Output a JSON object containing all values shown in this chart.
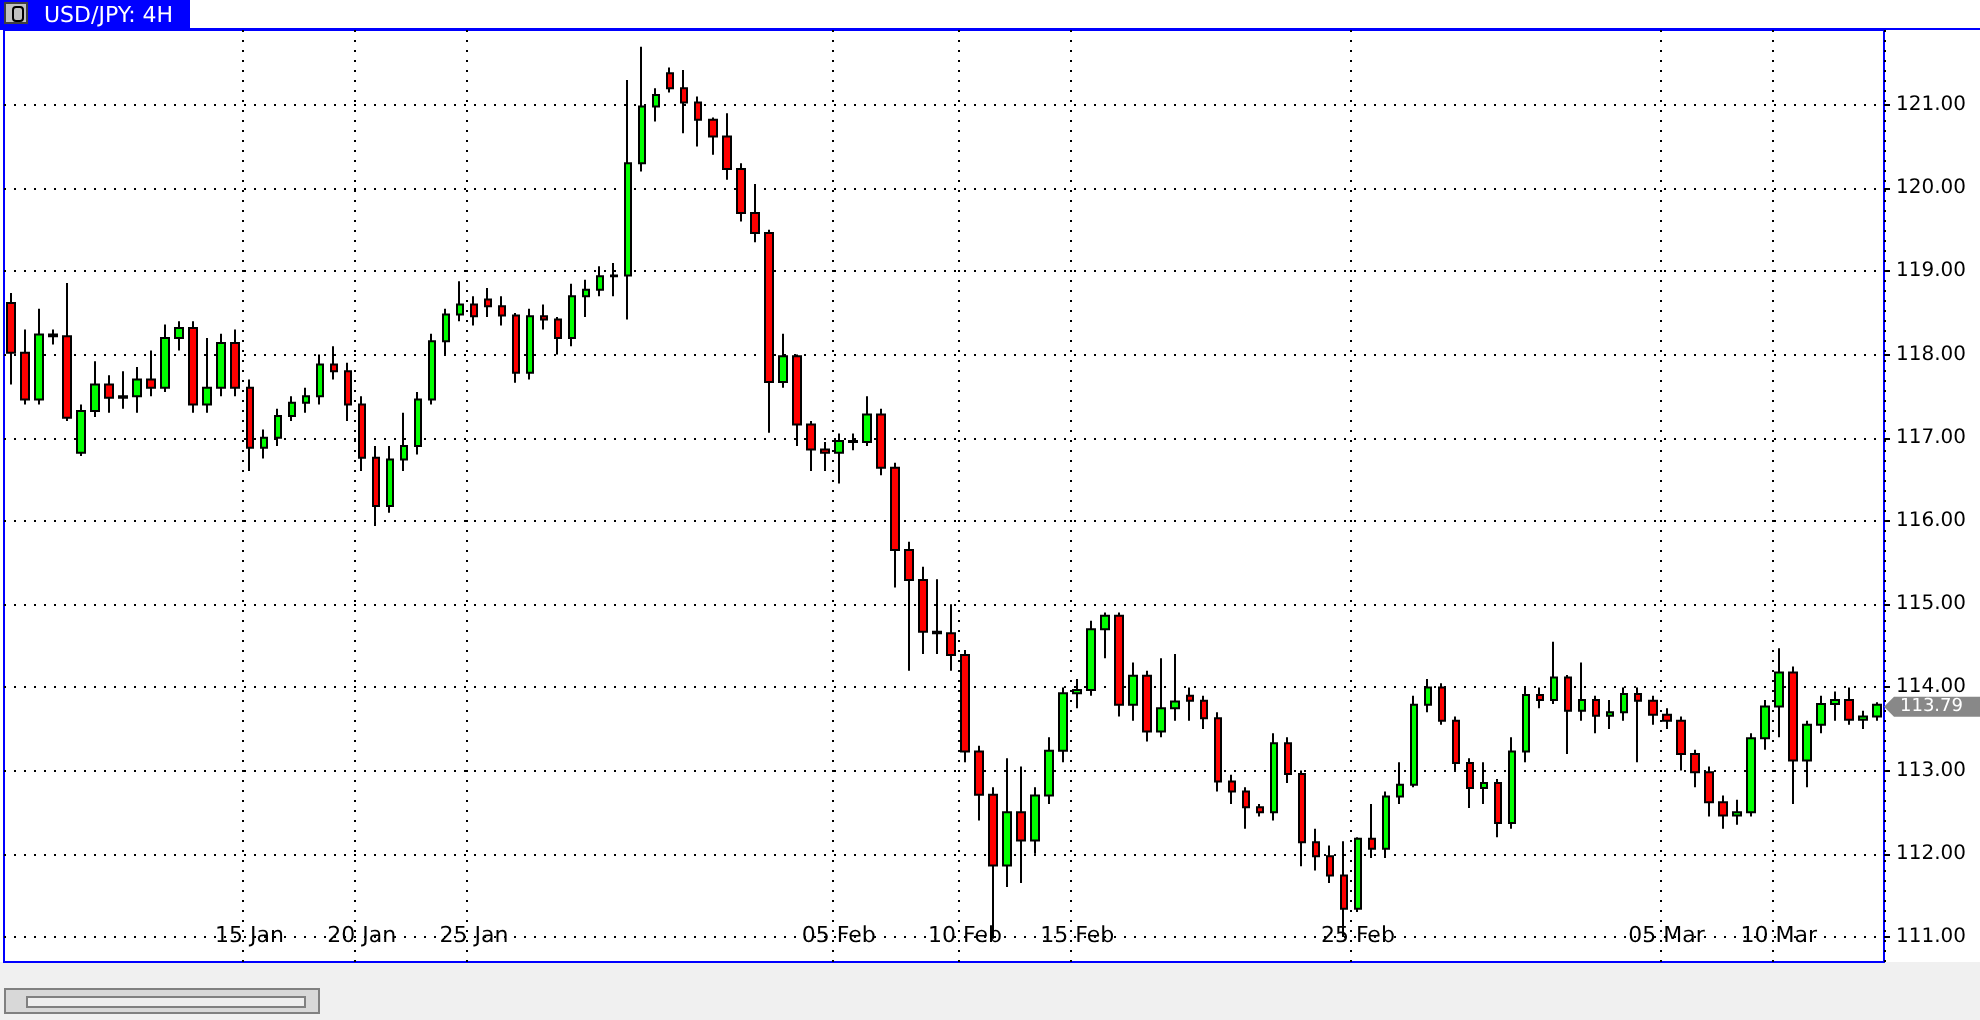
{
  "chart_data": {
    "type": "candlestick",
    "title": "USD/JPY: 4H",
    "categories": [
      null,
      null,
      null,
      null,
      null,
      null,
      null,
      null,
      null,
      null,
      null,
      null,
      null,
      null,
      null,
      null,
      null,
      "15 Jan",
      null,
      null,
      null,
      null,
      null,
      null,
      null,
      "20 Jan",
      null,
      null,
      null,
      null,
      null,
      null,
      null,
      "25 Jan",
      null,
      null,
      null,
      null,
      null,
      null,
      null,
      null,
      null,
      null,
      null,
      null,
      null,
      null,
      null,
      null,
      null,
      null,
      null,
      null,
      null,
      null,
      null,
      null,
      null,
      "05 Feb",
      null,
      null,
      null,
      null,
      null,
      null,
      null,
      null,
      "10 Feb",
      null,
      null,
      null,
      null,
      null,
      null,
      null,
      "15 Feb",
      null,
      null,
      null,
      null,
      null,
      null,
      null,
      null,
      null,
      null,
      null,
      null,
      null,
      null,
      null,
      null,
      null,
      null,
      null,
      "25 Feb",
      null,
      null,
      null,
      null,
      null,
      null,
      null,
      null,
      null,
      null,
      null,
      null,
      null,
      null,
      null,
      null,
      null,
      null,
      null,
      null,
      null,
      "05 Mar",
      null,
      null,
      null,
      null,
      null,
      null,
      null,
      "10 Mar",
      null,
      null,
      null,
      null,
      null,
      null,
      null
    ],
    "ohlc": [
      [
        118.62,
        118.74,
        117.64,
        118.02
      ],
      [
        118.02,
        118.3,
        117.4,
        117.46
      ],
      [
        117.46,
        118.55,
        117.4,
        118.24
      ],
      [
        118.24,
        118.3,
        118.12,
        118.22
      ],
      [
        118.22,
        118.86,
        117.2,
        117.24
      ],
      [
        116.82,
        117.4,
        116.78,
        117.32
      ],
      [
        117.32,
        117.92,
        117.25,
        117.64
      ],
      [
        117.64,
        117.75,
        117.3,
        117.48
      ],
      [
        117.48,
        117.8,
        117.35,
        117.5
      ],
      [
        117.5,
        117.85,
        117.3,
        117.7
      ],
      [
        117.7,
        118.05,
        117.5,
        117.6
      ],
      [
        117.6,
        118.36,
        117.55,
        118.2
      ],
      [
        118.2,
        118.4,
        118.05,
        118.32
      ],
      [
        118.32,
        118.4,
        117.3,
        117.4
      ],
      [
        117.4,
        118.2,
        117.3,
        117.6
      ],
      [
        117.6,
        118.25,
        117.5,
        118.14
      ],
      [
        118.14,
        118.3,
        117.5,
        117.6
      ],
      [
        117.6,
        117.7,
        116.6,
        116.88
      ],
      [
        116.88,
        117.1,
        116.75,
        117.0
      ],
      [
        117.0,
        117.35,
        116.9,
        117.26
      ],
      [
        117.26,
        117.5,
        117.2,
        117.42
      ],
      [
        117.42,
        117.6,
        117.3,
        117.5
      ],
      [
        117.5,
        118.0,
        117.4,
        117.88
      ],
      [
        117.88,
        118.1,
        117.7,
        117.8
      ],
      [
        117.8,
        117.9,
        117.2,
        117.4
      ],
      [
        117.4,
        117.5,
        116.6,
        116.76
      ],
      [
        116.76,
        116.9,
        115.94,
        116.18
      ],
      [
        116.18,
        116.9,
        116.1,
        116.74
      ],
      [
        116.74,
        117.3,
        116.6,
        116.9
      ],
      [
        116.9,
        117.55,
        116.8,
        117.46
      ],
      [
        117.46,
        118.25,
        117.4,
        118.16
      ],
      [
        118.16,
        118.55,
        118.0,
        118.48
      ],
      [
        118.48,
        118.88,
        118.4,
        118.6
      ],
      [
        118.6,
        118.7,
        118.35,
        118.46
      ],
      [
        118.66,
        118.8,
        118.45,
        118.58
      ],
      [
        118.58,
        118.7,
        118.35,
        118.47
      ],
      [
        118.47,
        118.5,
        117.66,
        117.78
      ],
      [
        117.78,
        118.55,
        117.7,
        118.46
      ],
      [
        118.46,
        118.6,
        118.3,
        118.42
      ],
      [
        118.42,
        118.45,
        118.0,
        118.2
      ],
      [
        118.2,
        118.85,
        118.1,
        118.7
      ],
      [
        118.7,
        118.9,
        118.45,
        118.78
      ],
      [
        118.78,
        119.06,
        118.7,
        118.94
      ],
      [
        118.94,
        119.1,
        118.7,
        118.95
      ],
      [
        118.95,
        121.3,
        118.42,
        120.3
      ],
      [
        120.3,
        121.7,
        120.2,
        120.98
      ],
      [
        120.98,
        121.2,
        120.8,
        121.12
      ],
      [
        121.38,
        121.45,
        121.15,
        121.2
      ],
      [
        121.2,
        121.42,
        120.66,
        121.03
      ],
      [
        121.03,
        121.1,
        120.5,
        120.82
      ],
      [
        120.82,
        120.85,
        120.4,
        120.62
      ],
      [
        120.62,
        120.9,
        120.1,
        120.23
      ],
      [
        120.23,
        120.3,
        119.6,
        119.7
      ],
      [
        119.7,
        120.05,
        119.35,
        119.46
      ],
      [
        119.46,
        119.5,
        117.06,
        117.67
      ],
      [
        117.67,
        118.25,
        117.6,
        117.98
      ],
      [
        117.98,
        118.0,
        116.9,
        117.16
      ],
      [
        117.16,
        117.2,
        116.6,
        116.86
      ],
      [
        116.86,
        116.95,
        116.6,
        116.82
      ],
      [
        116.82,
        117.05,
        116.45,
        116.96
      ],
      [
        116.96,
        117.05,
        116.85,
        116.95
      ],
      [
        116.95,
        117.5,
        116.9,
        117.28
      ],
      [
        117.28,
        117.35,
        116.55,
        116.64
      ],
      [
        116.64,
        116.7,
        115.2,
        115.65
      ],
      [
        115.65,
        115.75,
        114.2,
        115.29
      ],
      [
        115.29,
        115.45,
        114.4,
        114.67
      ],
      [
        114.67,
        115.3,
        114.4,
        114.65
      ],
      [
        114.65,
        115.0,
        114.2,
        114.39
      ],
      [
        114.39,
        114.45,
        113.1,
        113.23
      ],
      [
        113.23,
        113.3,
        112.4,
        112.71
      ],
      [
        112.71,
        112.8,
        110.98,
        111.86
      ],
      [
        111.86,
        113.15,
        111.6,
        112.5
      ],
      [
        112.5,
        113.05,
        111.65,
        112.16
      ],
      [
        112.16,
        112.8,
        112.0,
        112.7
      ],
      [
        112.7,
        113.4,
        112.6,
        113.24
      ],
      [
        113.24,
        114.0,
        113.1,
        113.93
      ],
      [
        113.93,
        114.1,
        113.75,
        113.97
      ],
      [
        113.97,
        114.8,
        113.9,
        114.7
      ],
      [
        114.7,
        114.9,
        114.35,
        114.86
      ],
      [
        114.86,
        114.9,
        113.65,
        113.79
      ],
      [
        113.79,
        114.3,
        113.6,
        114.14
      ],
      [
        114.14,
        114.2,
        113.35,
        113.47
      ],
      [
        113.47,
        114.35,
        113.4,
        113.75
      ],
      [
        113.75,
        114.4,
        113.6,
        113.83
      ],
      [
        113.9,
        114.0,
        113.6,
        113.84
      ],
      [
        113.84,
        113.9,
        113.5,
        113.63
      ],
      [
        113.63,
        113.7,
        112.75,
        112.87
      ],
      [
        112.87,
        112.95,
        112.6,
        112.75
      ],
      [
        112.75,
        112.8,
        112.3,
        112.56
      ],
      [
        112.56,
        112.6,
        112.45,
        112.5
      ],
      [
        112.5,
        113.45,
        112.4,
        113.33
      ],
      [
        113.33,
        113.4,
        112.85,
        112.96
      ],
      [
        112.96,
        113.0,
        111.85,
        112.14
      ],
      [
        112.14,
        112.3,
        111.8,
        111.97
      ],
      [
        111.97,
        112.1,
        111.65,
        111.74
      ],
      [
        111.74,
        112.15,
        111.0,
        111.34
      ],
      [
        111.34,
        112.2,
        111.3,
        112.18
      ],
      [
        112.18,
        112.6,
        111.95,
        112.06
      ],
      [
        112.06,
        112.75,
        111.95,
        112.69
      ],
      [
        112.69,
        113.1,
        112.6,
        112.83
      ],
      [
        112.83,
        113.9,
        112.8,
        113.79
      ],
      [
        113.79,
        114.1,
        113.7,
        114.0
      ],
      [
        114.0,
        114.05,
        113.55,
        113.6
      ],
      [
        113.6,
        113.65,
        113.0,
        113.09
      ],
      [
        113.09,
        113.15,
        112.55,
        112.79
      ],
      [
        112.79,
        113.1,
        112.6,
        112.85
      ],
      [
        112.85,
        112.9,
        112.2,
        112.37
      ],
      [
        112.37,
        113.4,
        112.3,
        113.23
      ],
      [
        113.23,
        114.0,
        113.1,
        113.91
      ],
      [
        113.91,
        114.0,
        113.75,
        113.85
      ],
      [
        113.85,
        114.55,
        113.8,
        114.12
      ],
      [
        114.12,
        114.15,
        113.2,
        113.72
      ],
      [
        113.72,
        114.3,
        113.6,
        113.85
      ],
      [
        113.85,
        113.9,
        113.45,
        113.66
      ],
      [
        113.66,
        113.85,
        113.5,
        113.7
      ],
      [
        113.7,
        114.0,
        113.6,
        113.92
      ],
      [
        113.92,
        114.0,
        113.1,
        113.84
      ],
      [
        113.84,
        113.9,
        113.55,
        113.67
      ],
      [
        113.67,
        113.75,
        113.5,
        113.6
      ],
      [
        113.6,
        113.65,
        113.0,
        113.2
      ],
      [
        113.2,
        113.25,
        112.8,
        112.98
      ],
      [
        112.98,
        113.05,
        112.45,
        112.62
      ],
      [
        112.62,
        112.7,
        112.3,
        112.46
      ],
      [
        112.46,
        112.65,
        112.35,
        112.5
      ],
      [
        112.5,
        113.45,
        112.45,
        113.39
      ],
      [
        113.39,
        113.85,
        113.25,
        113.77
      ],
      [
        113.77,
        114.47,
        113.4,
        114.18
      ],
      [
        114.18,
        114.25,
        112.6,
        113.12
      ],
      [
        113.12,
        113.6,
        112.8,
        113.55
      ],
      [
        113.55,
        113.9,
        113.45,
        113.8
      ],
      [
        113.8,
        113.95,
        113.6,
        113.85
      ],
      [
        113.85,
        114.0,
        113.55,
        113.61
      ],
      [
        113.61,
        113.72,
        113.5,
        113.65
      ],
      [
        113.65,
        113.82,
        113.6,
        113.79
      ]
    ],
    "colors": [
      "#ff0000",
      "#ff0000",
      "#00ff00",
      "#ff0000",
      "#ff0000",
      "#00ff00",
      "#00ff00",
      "#ff0000",
      "#00ff00",
      "#00ff00",
      "#ff0000",
      "#00ff00",
      "#00ff00",
      "#ff0000",
      "#00ff00",
      "#00ff00",
      "#ff0000",
      "#ff0000",
      "#00ff00",
      "#00ff00",
      "#00ff00",
      "#00ff00",
      "#00ff00",
      "#ff0000",
      "#ff0000",
      "#ff0000",
      "#ff0000",
      "#00ff00",
      "#00ff00",
      "#00ff00",
      "#00ff00",
      "#00ff00",
      "#00ff00",
      "#ff0000",
      "#ff0000",
      "#ff0000",
      "#ff0000",
      "#00ff00",
      "#ff0000",
      "#ff0000",
      "#00ff00",
      "#00ff00",
      "#00ff00",
      "#00ff00",
      "#00ff00",
      "#00ff00",
      "#00ff00",
      "#ff0000",
      "#ff0000",
      "#ff0000",
      "#ff0000",
      "#ff0000",
      "#ff0000",
      "#ff0000",
      "#ff0000",
      "#00ff00",
      "#ff0000",
      "#ff0000",
      "#ff0000",
      "#00ff00",
      "#ff0000",
      "#00ff00",
      "#ff0000",
      "#ff0000",
      "#ff0000",
      "#ff0000",
      "#ff0000",
      "#ff0000",
      "#ff0000",
      "#ff0000",
      "#ff0000",
      "#00ff00",
      "#ff0000",
      "#00ff00",
      "#00ff00",
      "#00ff00",
      "#00ff00",
      "#00ff00",
      "#00ff00",
      "#ff0000",
      "#00ff00",
      "#ff0000",
      "#00ff00",
      "#00ff00",
      "#ff0000",
      "#ff0000",
      "#ff0000",
      "#ff0000",
      "#ff0000",
      "#ff0000",
      "#00ff00",
      "#ff0000",
      "#ff0000",
      "#ff0000",
      "#ff0000",
      "#ff0000",
      "#00ff00",
      "#ff0000",
      "#00ff00",
      "#00ff00",
      "#00ff00",
      "#00ff00",
      "#ff0000",
      "#ff0000",
      "#ff0000",
      "#00ff00",
      "#ff0000",
      "#00ff00",
      "#00ff00",
      "#ff0000",
      "#00ff00",
      "#ff0000",
      "#00ff00",
      "#ff0000",
      "#00ff00",
      "#00ff00",
      "#ff0000",
      "#ff0000",
      "#ff0000",
      "#ff0000",
      "#ff0000",
      "#ff0000",
      "#ff0000",
      "#00ff00",
      "#00ff00",
      "#00ff00",
      "#00ff00",
      "#ff0000",
      "#00ff00",
      "#00ff00",
      "#00ff00",
      "#ff0000",
      "#00ff00",
      "#00ff00"
    ],
    "ylim": [
      110.7,
      121.9
    ],
    "yticks": [
      {
        "value": 111,
        "label": "111.00"
      },
      {
        "value": 112,
        "label": "112.00"
      },
      {
        "value": 113,
        "label": "113.00"
      },
      {
        "value": 114,
        "label": "114.00"
      },
      {
        "value": 115,
        "label": "115.00"
      },
      {
        "value": 116,
        "label": "116.00"
      },
      {
        "value": 117,
        "label": "117.00"
      },
      {
        "value": 118,
        "label": "118.00"
      },
      {
        "value": 119,
        "label": "119.00"
      },
      {
        "value": 120,
        "label": "120.00"
      },
      {
        "value": 121,
        "label": "121.00"
      }
    ],
    "grid": true,
    "annotations": [
      "113.79"
    ]
  }
}
